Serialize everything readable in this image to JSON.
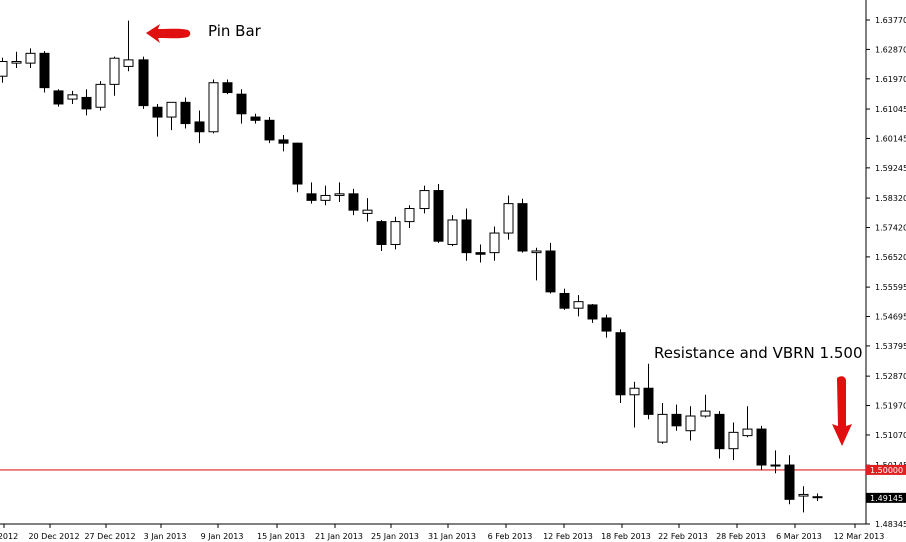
{
  "chart_data": {
    "type": "candlestick",
    "title": "",
    "xlabel": "",
    "ylabel": "",
    "ylim": [
      1.48345,
      1.6402
    ],
    "grid": false,
    "y_ticks": [
      "1.63770",
      "1.62870",
      "1.61970",
      "1.61045",
      "1.60145",
      "1.59245",
      "1.58320",
      "1.57420",
      "1.56520",
      "1.55595",
      "1.54695",
      "1.53795",
      "1.52870",
      "1.51970",
      "1.51070",
      "1.50145",
      "1.49145",
      "1.48345"
    ],
    "x_ticks": [
      "2012",
      "20 Dec 2012",
      "27 Dec 2012",
      "3 Jan 2013",
      "9 Jan 2013",
      "15 Jan 2013",
      "21 Jan 2013",
      "25 Jan 2013",
      "31 Jan 2013",
      "6 Feb 2013",
      "12 Feb 2013",
      "18 Feb 2013",
      "22 Feb 2013",
      "28 Feb 2013",
      "6 Mar 2013",
      "12 Mar 2013"
    ],
    "candles": [
      {
        "o": 1.6205,
        "h": 1.6262,
        "l": 1.6185,
        "c": 1.625
      },
      {
        "o": 1.6245,
        "h": 1.628,
        "l": 1.623,
        "c": 1.625
      },
      {
        "o": 1.6245,
        "h": 1.629,
        "l": 1.623,
        "c": 1.6275
      },
      {
        "o": 1.6275,
        "h": 1.6282,
        "l": 1.6155,
        "c": 1.617
      },
      {
        "o": 1.616,
        "h": 1.6165,
        "l": 1.6112,
        "c": 1.612
      },
      {
        "o": 1.6135,
        "h": 1.616,
        "l": 1.612,
        "c": 1.6148
      },
      {
        "o": 1.614,
        "h": 1.6165,
        "l": 1.6085,
        "c": 1.6105
      },
      {
        "o": 1.611,
        "h": 1.619,
        "l": 1.61,
        "c": 1.618
      },
      {
        "o": 1.618,
        "h": 1.6265,
        "l": 1.6145,
        "c": 1.626
      },
      {
        "o": 1.6235,
        "h": 1.6375,
        "l": 1.622,
        "c": 1.6255
      },
      {
        "o": 1.6255,
        "h": 1.6265,
        "l": 1.6105,
        "c": 1.6115
      },
      {
        "o": 1.611,
        "h": 1.612,
        "l": 1.602,
        "c": 1.608
      },
      {
        "o": 1.608,
        "h": 1.6125,
        "l": 1.604,
        "c": 1.6125
      },
      {
        "o": 1.6125,
        "h": 1.614,
        "l": 1.6045,
        "c": 1.606
      },
      {
        "o": 1.6065,
        "h": 1.61,
        "l": 1.6,
        "c": 1.6035
      },
      {
        "o": 1.6035,
        "h": 1.6195,
        "l": 1.603,
        "c": 1.6185
      },
      {
        "o": 1.6185,
        "h": 1.6195,
        "l": 1.615,
        "c": 1.6155
      },
      {
        "o": 1.615,
        "h": 1.6165,
        "l": 1.606,
        "c": 1.609
      },
      {
        "o": 1.608,
        "h": 1.609,
        "l": 1.606,
        "c": 1.607
      },
      {
        "o": 1.607,
        "h": 1.608,
        "l": 1.6,
        "c": 1.601
      },
      {
        "o": 1.601,
        "h": 1.6025,
        "l": 1.5975,
        "c": 1.6
      },
      {
        "o": 1.6,
        "h": 1.6002,
        "l": 1.585,
        "c": 1.5875
      },
      {
        "o": 1.5845,
        "h": 1.588,
        "l": 1.5815,
        "c": 1.5825
      },
      {
        "o": 1.5825,
        "h": 1.587,
        "l": 1.581,
        "c": 1.584
      },
      {
        "o": 1.584,
        "h": 1.588,
        "l": 1.582,
        "c": 1.5845
      },
      {
        "o": 1.5845,
        "h": 1.586,
        "l": 1.578,
        "c": 1.5795
      },
      {
        "o": 1.5785,
        "h": 1.5832,
        "l": 1.576,
        "c": 1.5795
      },
      {
        "o": 1.576,
        "h": 1.5765,
        "l": 1.567,
        "c": 1.569
      },
      {
        "o": 1.569,
        "h": 1.5775,
        "l": 1.5675,
        "c": 1.576
      },
      {
        "o": 1.576,
        "h": 1.581,
        "l": 1.574,
        "c": 1.58
      },
      {
        "o": 1.58,
        "h": 1.587,
        "l": 1.5785,
        "c": 1.5855
      },
      {
        "o": 1.5855,
        "h": 1.5875,
        "l": 1.5695,
        "c": 1.57
      },
      {
        "o": 1.569,
        "h": 1.578,
        "l": 1.5685,
        "c": 1.5765
      },
      {
        "o": 1.5765,
        "h": 1.58,
        "l": 1.564,
        "c": 1.5665
      },
      {
        "o": 1.5665,
        "h": 1.569,
        "l": 1.5635,
        "c": 1.566
      },
      {
        "o": 1.5665,
        "h": 1.5745,
        "l": 1.564,
        "c": 1.5725
      },
      {
        "o": 1.5725,
        "h": 1.584,
        "l": 1.5705,
        "c": 1.5815
      },
      {
        "o": 1.5815,
        "h": 1.583,
        "l": 1.5665,
        "c": 1.567
      },
      {
        "o": 1.5665,
        "h": 1.568,
        "l": 1.558,
        "c": 1.567
      },
      {
        "o": 1.567,
        "h": 1.5695,
        "l": 1.554,
        "c": 1.5545
      },
      {
        "o": 1.554,
        "h": 1.5555,
        "l": 1.549,
        "c": 1.5495
      },
      {
        "o": 1.5495,
        "h": 1.5535,
        "l": 1.547,
        "c": 1.5515
      },
      {
        "o": 1.5505,
        "h": 1.5508,
        "l": 1.545,
        "c": 1.5462
      },
      {
        "o": 1.5465,
        "h": 1.5475,
        "l": 1.5405,
        "c": 1.5425
      },
      {
        "o": 1.542,
        "h": 1.543,
        "l": 1.5205,
        "c": 1.523
      },
      {
        "o": 1.523,
        "h": 1.527,
        "l": 1.513,
        "c": 1.525
      },
      {
        "o": 1.525,
        "h": 1.5325,
        "l": 1.5155,
        "c": 1.517
      },
      {
        "o": 1.5085,
        "h": 1.5205,
        "l": 1.508,
        "c": 1.517
      },
      {
        "o": 1.517,
        "h": 1.52,
        "l": 1.512,
        "c": 1.5135
      },
      {
        "o": 1.512,
        "h": 1.5195,
        "l": 1.509,
        "c": 1.5165
      },
      {
        "o": 1.5165,
        "h": 1.523,
        "l": 1.516,
        "c": 1.518
      },
      {
        "o": 1.517,
        "h": 1.518,
        "l": 1.5035,
        "c": 1.5065
      },
      {
        "o": 1.5065,
        "h": 1.5145,
        "l": 1.503,
        "c": 1.5115
      },
      {
        "o": 1.5105,
        "h": 1.5195,
        "l": 1.51,
        "c": 1.5125
      },
      {
        "o": 1.5125,
        "h": 1.5135,
        "l": 1.5,
        "c": 1.5015
      },
      {
        "o": 1.5015,
        "h": 1.506,
        "l": 1.499,
        "c": 1.5012
      },
      {
        "o": 1.5015,
        "h": 1.5045,
        "l": 1.4895,
        "c": 1.491
      },
      {
        "o": 1.492,
        "h": 1.495,
        "l": 1.487,
        "c": 1.4925
      },
      {
        "o": 1.4918,
        "h": 1.4928,
        "l": 1.4905,
        "c": 1.4918
      }
    ],
    "levels": [
      {
        "value": 1.5,
        "label": "1.50000",
        "color": "#e02020"
      }
    ],
    "current_price": {
      "value": 1.49145,
      "label": "1.49145",
      "bg": "#000000"
    },
    "annotations": [
      {
        "text": "Pin Bar",
        "arrow": "left",
        "color": "#e01010"
      },
      {
        "text": "Resistance and VBRN 1.500",
        "arrow": "down",
        "color": "#e01010"
      }
    ],
    "colors": {
      "bull_fill": "#ffffff",
      "bear_fill": "#000000",
      "outline": "#000000",
      "axis": "#000000",
      "background": "#ffffff"
    }
  }
}
